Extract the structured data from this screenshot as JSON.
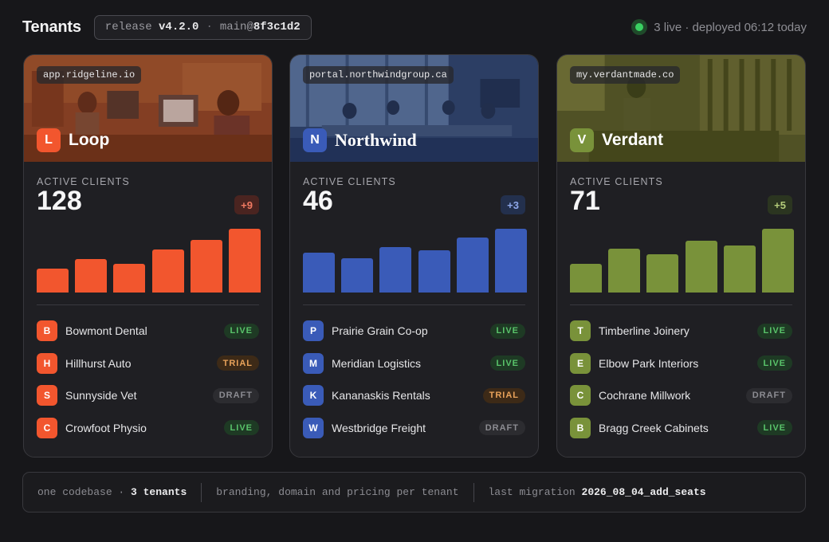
{
  "header": {
    "title": "Tenants",
    "release_prefix": "release",
    "release_version": "v4.2.0",
    "release_sep": "·",
    "release_branch": "main@",
    "release_commit": "8f3c1d2",
    "status_text": "3 live · deployed 06:12 today",
    "status_color": "#3ad062"
  },
  "tenants": [
    {
      "domain": "app.ridgeline.io",
      "initial": "L",
      "name": "Loop",
      "accent": "#f2562e",
      "stat_label": "ACTIVE CLIENTS",
      "active_clients": "128",
      "delta": "+9",
      "delta_bg": "#4a2420",
      "delta_color": "#f07a62",
      "bar_values": [
        30,
        42,
        36,
        54,
        66,
        80
      ],
      "clients": [
        {
          "initial": "B",
          "name": "Bowmont Dental",
          "status": "LIVE"
        },
        {
          "initial": "H",
          "name": "Hillhurst Auto",
          "status": "TRIAL"
        },
        {
          "initial": "S",
          "name": "Sunnyside Vet",
          "status": "DRAFT"
        },
        {
          "initial": "C",
          "name": "Crowfoot Physio",
          "status": "LIVE"
        }
      ]
    },
    {
      "domain": "portal.northwindgroup.ca",
      "initial": "N",
      "name": "Northwind",
      "accent": "#3a5bb8",
      "stat_label": "ACTIVE CLIENTS",
      "active_clients": "46",
      "delta": "+3",
      "delta_bg": "#23304d",
      "delta_color": "#8ea8ea",
      "bar_values": [
        44,
        38,
        50,
        46,
        60,
        70
      ],
      "clients": [
        {
          "initial": "P",
          "name": "Prairie Grain Co-op",
          "status": "LIVE"
        },
        {
          "initial": "M",
          "name": "Meridian Logistics",
          "status": "LIVE"
        },
        {
          "initial": "K",
          "name": "Kananaskis Rentals",
          "status": "TRIAL"
        },
        {
          "initial": "W",
          "name": "Westbridge Freight",
          "status": "DRAFT"
        }
      ]
    },
    {
      "domain": "my.verdantmade.co",
      "initial": "V",
      "name": "Verdant",
      "accent": "#79923a",
      "stat_label": "ACTIVE CLIENTS",
      "active_clients": "71",
      "delta": "+5",
      "delta_bg": "#2b3520",
      "delta_color": "#b4cc7a",
      "bar_values": [
        34,
        52,
        46,
        62,
        56,
        76
      ],
      "clients": [
        {
          "initial": "T",
          "name": "Timberline Joinery",
          "status": "LIVE"
        },
        {
          "initial": "E",
          "name": "Elbow Park Interiors",
          "status": "LIVE"
        },
        {
          "initial": "C",
          "name": "Cochrane Millwork",
          "status": "DRAFT"
        },
        {
          "initial": "B",
          "name": "Bragg Creek Cabinets",
          "status": "LIVE"
        }
      ]
    }
  ],
  "footer": {
    "codebase_prefix": "one codebase ·",
    "tenant_count": "3 tenants",
    "branding": "branding, domain and pricing per tenant",
    "migration_prefix": "last migration",
    "migration_name": "2026_08_04_add_seats"
  }
}
